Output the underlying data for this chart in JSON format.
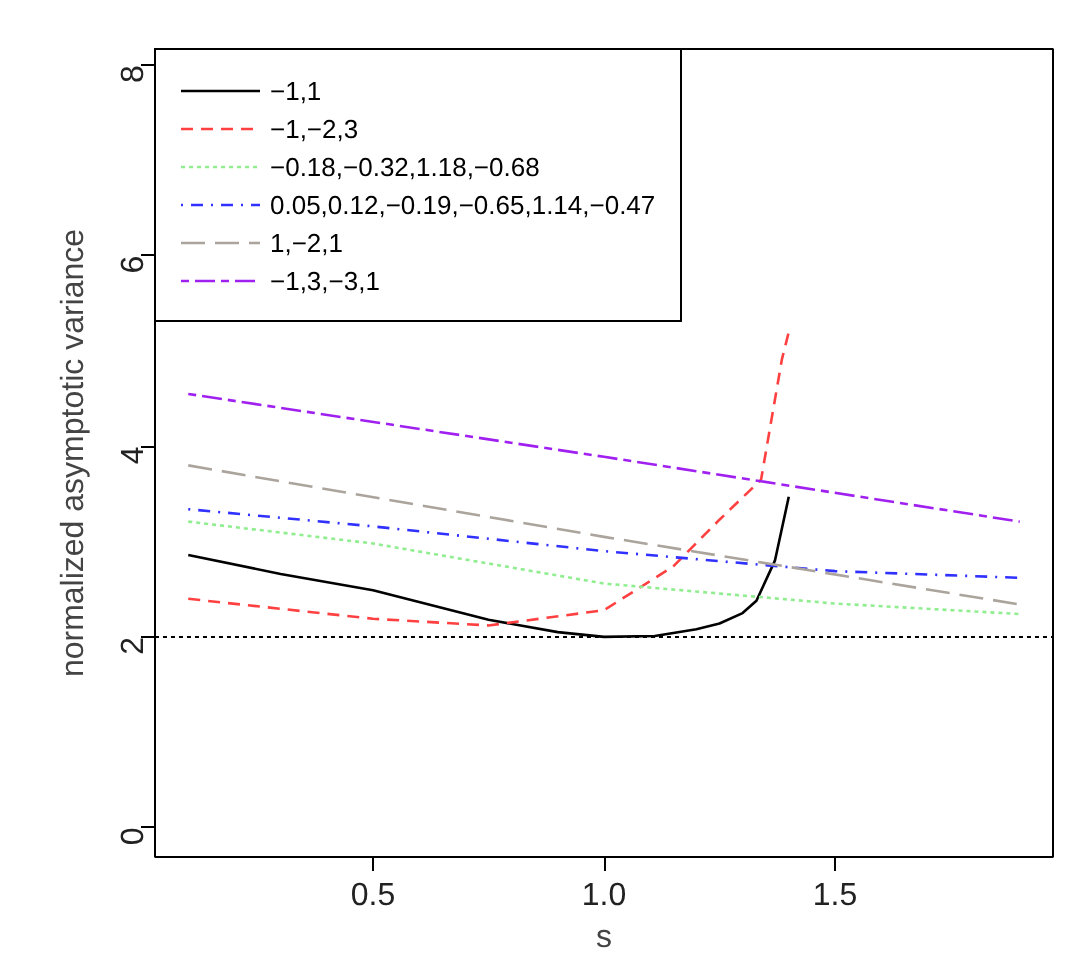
{
  "chart_data": {
    "type": "line",
    "xlabel": "s",
    "ylabel": "normalized asymptotic variance",
    "xlim": [
      0.028,
      1.972
    ],
    "ylim": [
      -0.31,
      8.17
    ],
    "xticks": [
      0.5,
      {
        "value": 1.0,
        "label": "1.0"
      },
      1.5
    ],
    "yticks": [
      0,
      2,
      4,
      6,
      8
    ],
    "grid": false,
    "legend": "top left",
    "ref_lines": [
      {
        "axis": "y",
        "value": 2,
        "color": "#000000",
        "line_style": "dotted"
      }
    ],
    "series": [
      {
        "name": "−1,1",
        "color": "#000000",
        "line_style": "solid",
        "x": [
          0.1,
          0.3,
          0.5,
          0.75,
          0.9,
          1.0,
          1.11,
          1.2,
          1.25,
          1.3,
          1.33,
          1.37,
          1.4
        ],
        "values": [
          2.86,
          2.66,
          2.49,
          2.18,
          2.05,
          2.0,
          2.01,
          2.08,
          2.14,
          2.25,
          2.38,
          2.8,
          3.47
        ]
      },
      {
        "name": "−1,−2,3",
        "color": "#ff4040",
        "line_style": "dashed",
        "x": [
          0.1,
          0.5,
          0.75,
          1.0,
          1.15,
          1.25,
          1.34,
          1.385,
          1.4
        ],
        "values": [
          2.4,
          2.19,
          2.12,
          2.28,
          2.74,
          3.23,
          3.65,
          4.91,
          5.2
        ]
      },
      {
        "name": "−0.18,−0.32,1.18,−0.68",
        "color": "#90ee90",
        "line_style": "dotted",
        "x": [
          0.1,
          0.5,
          1.0,
          1.5,
          1.9
        ],
        "values": [
          3.21,
          2.98,
          2.56,
          2.35,
          2.24
        ]
      },
      {
        "name": "0.05,0.12,−0.19,−0.65,1.14,−0.47",
        "color": "#3030ff",
        "line_style": "dashdot",
        "x": [
          0.1,
          0.5,
          1.0,
          1.5,
          1.9
        ],
        "values": [
          3.34,
          3.16,
          2.9,
          2.69,
          2.62
        ]
      },
      {
        "name": "1,−2,1",
        "color": "#aaa49c",
        "line_style": "longdash",
        "x": [
          0.1,
          1.0,
          1.9
        ],
        "values": [
          3.8,
          3.05,
          2.34
        ]
      },
      {
        "name": "−1,3,−3,1",
        "color": "#a020f0",
        "line_style": "twodash",
        "x": [
          0.1,
          1.0,
          1.9
        ],
        "values": [
          4.55,
          3.89,
          3.21
        ]
      }
    ]
  }
}
